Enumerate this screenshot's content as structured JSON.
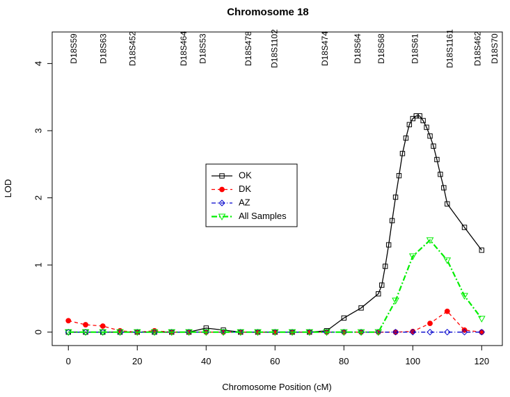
{
  "chart_data": {
    "type": "line",
    "title": "Chromosome 18",
    "x_label": "Chromosome Position (cM)",
    "y_label": "LOD",
    "xlim": [
      -4.7,
      126
    ],
    "ylim": [
      -0.2,
      4.47
    ],
    "xticks": [
      0,
      20,
      40,
      60,
      80,
      100,
      120
    ],
    "yticks": [
      0,
      1,
      2,
      3,
      4
    ],
    "legend": "center",
    "markers": [
      {
        "name": "D18S59",
        "position": 1.6
      },
      {
        "name": "D18S63",
        "position": 10.1
      },
      {
        "name": "D18S452",
        "position": 18.6
      },
      {
        "name": "D18S464",
        "position": 33.5
      },
      {
        "name": "D18S53",
        "position": 39
      },
      {
        "name": "D18S478",
        "position": 52.3
      },
      {
        "name": "D18S1102",
        "position": 59.8
      },
      {
        "name": "D18S474",
        "position": 74.5
      },
      {
        "name": "D18S64",
        "position": 84
      },
      {
        "name": "D18S68",
        "position": 90.9
      },
      {
        "name": "D18S61",
        "position": 100.6
      },
      {
        "name": "D18S1161",
        "position": 110.7
      },
      {
        "name": "D18S462",
        "position": 118.8
      },
      {
        "name": "D18S70",
        "position": 123.8
      }
    ],
    "series": [
      {
        "name": "OK",
        "color": "#000000",
        "marker": "square",
        "dash": "none",
        "width": 1.3,
        "x": [
          0,
          5,
          10,
          15,
          20,
          25,
          30,
          35,
          40,
          45,
          50,
          55,
          60,
          65,
          70,
          75,
          80,
          85,
          90,
          91,
          92,
          93,
          94,
          95,
          96,
          97,
          98,
          99,
          100,
          101,
          102,
          103,
          104,
          105,
          106,
          107,
          108,
          109,
          110,
          115,
          120
        ],
        "values": [
          0,
          0,
          0,
          0,
          0,
          0,
          0,
          0,
          0.06,
          0.03,
          0,
          0,
          0,
          0,
          0,
          0.02,
          0.21,
          0.36,
          0.57,
          0.7,
          0.98,
          1.3,
          1.66,
          2.01,
          2.33,
          2.66,
          2.89,
          3.09,
          3.18,
          3.22,
          3.22,
          3.15,
          3.05,
          2.92,
          2.77,
          2.57,
          2.35,
          2.15,
          1.91,
          1.56,
          1.22
        ]
      },
      {
        "name": "DK",
        "color": "#ff0000",
        "marker": "circle",
        "dash": "5,4",
        "width": 1.3,
        "x": [
          0,
          5,
          10,
          15,
          20,
          25,
          30,
          35,
          40,
          45,
          50,
          55,
          60,
          65,
          70,
          75,
          80,
          85,
          90,
          95,
          100,
          105,
          110,
          115,
          120
        ],
        "values": [
          0.17,
          0.11,
          0.09,
          0.02,
          0,
          0.02,
          0,
          0,
          0,
          0,
          0,
          0,
          0,
          0,
          0,
          0,
          0,
          0,
          0,
          0,
          0.01,
          0.13,
          0.31,
          0.03,
          0
        ]
      },
      {
        "name": "AZ",
        "color": "#0000cc",
        "marker": "diamond",
        "dash": "6,3,1,3",
        "width": 1.3,
        "x": [
          0,
          5,
          10,
          15,
          20,
          25,
          30,
          35,
          40,
          45,
          50,
          55,
          60,
          65,
          70,
          75,
          80,
          85,
          90,
          95,
          100,
          105,
          110,
          115,
          120
        ],
        "values": [
          0,
          0,
          0,
          0,
          0,
          0,
          0,
          0,
          0,
          0,
          0,
          0,
          0,
          0,
          0,
          0,
          0,
          0,
          0,
          0,
          0,
          0,
          0,
          0,
          0
        ]
      },
      {
        "name": "All Samples",
        "color": "#00ee00",
        "marker": "triangle",
        "dash": "8,3,2,3",
        "width": 2.2,
        "x": [
          0,
          5,
          10,
          15,
          20,
          25,
          30,
          35,
          40,
          45,
          50,
          55,
          60,
          65,
          70,
          75,
          80,
          85,
          90,
          95,
          100,
          105,
          110,
          115,
          120
        ],
        "values": [
          0,
          0,
          0,
          0,
          0,
          0,
          0,
          0,
          0,
          0,
          0,
          0,
          0,
          0,
          0,
          0,
          0,
          0,
          0,
          0.47,
          1.13,
          1.37,
          1.07,
          0.54,
          0.2
        ]
      }
    ]
  }
}
